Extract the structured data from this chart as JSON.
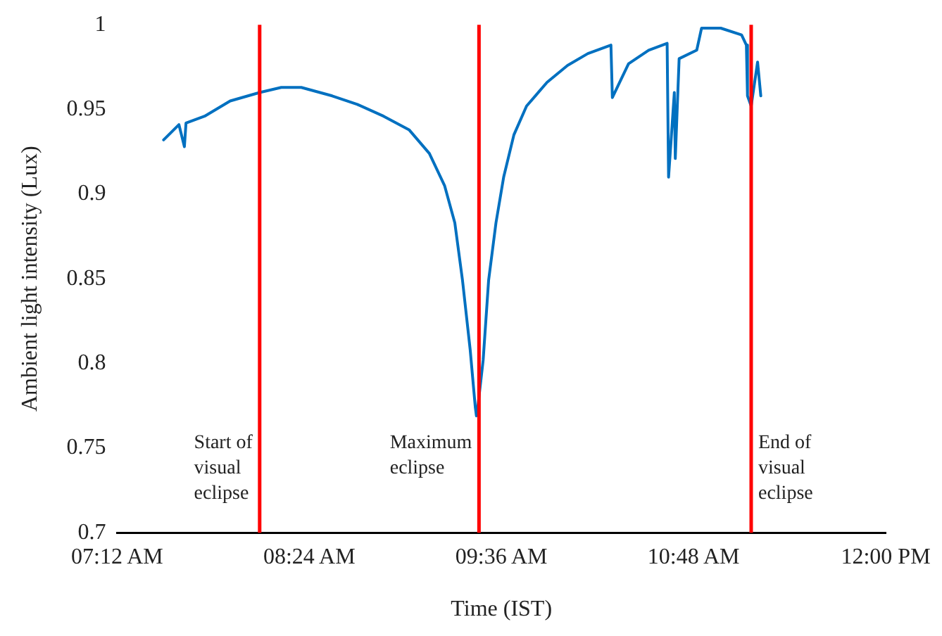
{
  "chart_data": {
    "type": "line",
    "xlabel": "Time (IST)",
    "ylabel": "Ambient light intensity (Lux)",
    "xlim": [
      7.2,
      12.0
    ],
    "xticks": [
      {
        "value": 7.2,
        "label": "07:12 AM"
      },
      {
        "value": 8.4,
        "label": "08:24 AM"
      },
      {
        "value": 9.6,
        "label": "09:36 AM"
      },
      {
        "value": 10.8,
        "label": "10:48 AM"
      },
      {
        "value": 12.0,
        "label": "12:00 PM"
      }
    ],
    "ylim": [
      0.7,
      1
    ],
    "yticks": [
      0.7,
      0.75,
      0.8,
      0.85,
      0.9,
      0.95,
      1
    ],
    "grid": false,
    "legend": false,
    "marker": "none",
    "line_style": "solid",
    "series": [
      {
        "color": "#0070c0",
        "x": [
          7.49,
          7.586,
          7.62,
          7.63,
          7.746,
          7.906,
          8.09,
          8.225,
          8.35,
          8.543,
          8.7,
          8.864,
          9.023,
          9.15,
          9.245,
          9.309,
          9.357,
          9.405,
          9.437,
          9.444,
          9.45,
          9.486,
          9.52,
          9.566,
          9.614,
          9.678,
          9.757,
          9.885,
          10.013,
          10.14,
          10.284,
          10.293,
          10.394,
          10.52,
          10.635,
          10.644,
          10.68,
          10.686,
          10.71,
          10.82,
          10.85,
          10.97,
          11.1,
          11.13,
          11.137,
          11.16,
          11.2,
          11.22
        ],
        "values": [
          0.932,
          0.941,
          0.928,
          0.942,
          0.946,
          0.955,
          0.96,
          0.963,
          0.963,
          0.958,
          0.953,
          0.946,
          0.938,
          0.924,
          0.905,
          0.883,
          0.849,
          0.808,
          0.774,
          0.769,
          0.772,
          0.802,
          0.849,
          0.883,
          0.91,
          0.935,
          0.952,
          0.966,
          0.976,
          0.983,
          0.988,
          0.957,
          0.977,
          0.985,
          0.989,
          0.91,
          0.96,
          0.921,
          0.98,
          0.985,
          0.998,
          0.998,
          0.994,
          0.988,
          0.958,
          0.952,
          0.978,
          0.958
        ]
      }
    ],
    "ref_lines": [
      {
        "axis": "x",
        "value": 8.09,
        "label": "Start of visual eclipse",
        "color": "#ff0000"
      },
      {
        "axis": "x",
        "value": 9.46,
        "label": "Maximum eclipse",
        "color": "#ff0000"
      },
      {
        "axis": "x",
        "value": 11.16,
        "label": "End of visual eclipse",
        "color": "#ff0000"
      }
    ]
  }
}
